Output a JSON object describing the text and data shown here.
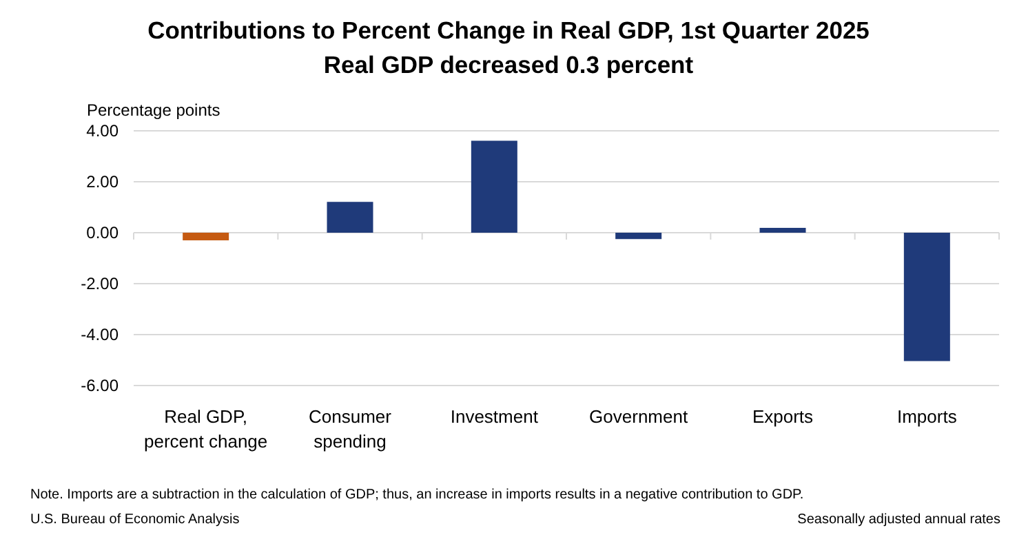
{
  "chart_data": {
    "type": "bar",
    "title": "Contributions to Percent Change in Real GDP, 1st Quarter 2025",
    "subtitle": "Real GDP decreased 0.3 percent",
    "ylabel": "Percentage points",
    "categories": [
      "Real GDP, percent change",
      "Consumer spending",
      "Investment",
      "Government",
      "Exports",
      "Imports"
    ],
    "values": [
      -0.3,
      1.21,
      3.61,
      -0.25,
      0.19,
      -5.04
    ],
    "colors": [
      "#c55a11",
      "#1f3a7a",
      "#1f3a7a",
      "#1f3a7a",
      "#1f3a7a",
      "#1f3a7a"
    ],
    "ylim": [
      -6,
      4
    ],
    "yticks": [
      {
        "value": -6,
        "label": "-6.00"
      },
      {
        "value": -4,
        "label": "-4.00"
      },
      {
        "value": -2,
        "label": "-2.00"
      },
      {
        "value": 0,
        "label": "0.00"
      },
      {
        "value": 2,
        "label": "2.00"
      },
      {
        "value": 4,
        "label": "4.00"
      }
    ],
    "grid": "y",
    "annotations": [
      "Note. Imports are a subtraction in the calculation of GDP; thus, an increase in imports results in a negative contribution to GDP.",
      "U.S. Bureau of Economic Analysis",
      "Seasonally adjusted annual rates"
    ]
  }
}
